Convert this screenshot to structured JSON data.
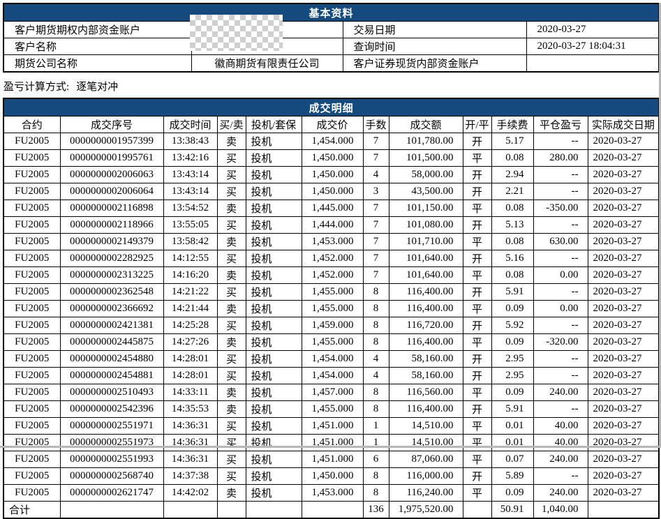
{
  "colors": {
    "title_bar_bg": "#154A7E",
    "title_bar_text": "#FFFFFF",
    "table_border": "#000000",
    "body_text": "#000000"
  },
  "basic_info": {
    "title": "基本资料",
    "rows": [
      {
        "label1": "客户期货期权内部资金账户",
        "value1": "",
        "value1_redacted": true,
        "label2": "交易日期",
        "value2": "2020-03-27"
      },
      {
        "label1": "客户名称",
        "value1": "",
        "value1_redacted": true,
        "label2": "查询时间",
        "value2": "2020-03-27 18:04:31"
      },
      {
        "label1": "期货公司名称",
        "value1": "徽商期货有限责任公司",
        "label2": "客户证券现货内部资金账户",
        "value2": ""
      }
    ]
  },
  "pnl_method": {
    "label": "盈亏计算方式:",
    "value": "逐笔对冲"
  },
  "trade_details": {
    "title": "成交明细",
    "columns": [
      "合约",
      "成交序号",
      "成交时间",
      "买/卖",
      "投机/套保",
      "成交价",
      "手数",
      "成交额",
      "开/平",
      "手续费",
      "平仓盈亏",
      "实际成交日期"
    ],
    "rows": [
      [
        "FU2005",
        "0000000001957399",
        "13:38:43",
        "卖",
        "投机",
        "1,454.000",
        "7",
        "101,780.00",
        "开",
        "5.17",
        "--",
        "2020-03-27"
      ],
      [
        "FU2005",
        "0000000001995761",
        "13:42:16",
        "买",
        "投机",
        "1,450.000",
        "7",
        "101,500.00",
        "平",
        "0.08",
        "280.00",
        "2020-03-27"
      ],
      [
        "FU2005",
        "0000000002006063",
        "13:43:14",
        "买",
        "投机",
        "1,450.000",
        "4",
        "58,000.00",
        "开",
        "2.94",
        "--",
        "2020-03-27"
      ],
      [
        "FU2005",
        "0000000002006064",
        "13:43:14",
        "买",
        "投机",
        "1,450.000",
        "3",
        "43,500.00",
        "开",
        "2.21",
        "--",
        "2020-03-27"
      ],
      [
        "FU2005",
        "0000000002116898",
        "13:54:52",
        "卖",
        "投机",
        "1,445.000",
        "7",
        "101,150.00",
        "平",
        "0.08",
        "-350.00",
        "2020-03-27"
      ],
      [
        "FU2005",
        "0000000002118966",
        "13:55:05",
        "买",
        "投机",
        "1,444.000",
        "7",
        "101,080.00",
        "开",
        "5.13",
        "--",
        "2020-03-27"
      ],
      [
        "FU2005",
        "0000000002149379",
        "13:58:42",
        "卖",
        "投机",
        "1,453.000",
        "7",
        "101,710.00",
        "平",
        "0.08",
        "630.00",
        "2020-03-27"
      ],
      [
        "FU2005",
        "0000000002282925",
        "14:12:55",
        "买",
        "投机",
        "1,452.000",
        "7",
        "101,640.00",
        "开",
        "5.16",
        "--",
        "2020-03-27"
      ],
      [
        "FU2005",
        "0000000002313225",
        "14:16:20",
        "卖",
        "投机",
        "1,452.000",
        "7",
        "101,640.00",
        "平",
        "0.08",
        "0.00",
        "2020-03-27"
      ],
      [
        "FU2005",
        "0000000002362548",
        "14:21:22",
        "买",
        "投机",
        "1,455.000",
        "8",
        "116,400.00",
        "开",
        "5.91",
        "--",
        "2020-03-27"
      ],
      [
        "FU2005",
        "0000000002366692",
        "14:21:44",
        "卖",
        "投机",
        "1,455.000",
        "8",
        "116,400.00",
        "平",
        "0.09",
        "0.00",
        "2020-03-27"
      ],
      [
        "FU2005",
        "0000000002421381",
        "14:25:28",
        "买",
        "投机",
        "1,459.000",
        "8",
        "116,720.00",
        "开",
        "5.92",
        "--",
        "2020-03-27"
      ],
      [
        "FU2005",
        "0000000002445875",
        "14:27:26",
        "卖",
        "投机",
        "1,455.000",
        "8",
        "116,400.00",
        "平",
        "0.09",
        "-320.00",
        "2020-03-27"
      ],
      [
        "FU2005",
        "0000000002454880",
        "14:28:01",
        "买",
        "投机",
        "1,454.000",
        "4",
        "58,160.00",
        "开",
        "2.95",
        "--",
        "2020-03-27"
      ],
      [
        "FU2005",
        "0000000002454881",
        "14:28:01",
        "买",
        "投机",
        "1,454.000",
        "4",
        "58,160.00",
        "开",
        "2.95",
        "--",
        "2020-03-27"
      ],
      [
        "FU2005",
        "0000000002510493",
        "14:33:11",
        "卖",
        "投机",
        "1,457.000",
        "8",
        "116,560.00",
        "平",
        "0.09",
        "240.00",
        "2020-03-27"
      ],
      [
        "FU2005",
        "0000000002542396",
        "14:35:53",
        "卖",
        "投机",
        "1,455.000",
        "8",
        "116,400.00",
        "开",
        "5.91",
        "--",
        "2020-03-27"
      ],
      [
        "FU2005",
        "0000000002551971",
        "14:36:31",
        "买",
        "投机",
        "1,451.000",
        "1",
        "14,510.00",
        "平",
        "0.01",
        "40.00",
        "2020-03-27"
      ],
      [
        "FU2005",
        "0000000002551973",
        "14:36:31",
        "买",
        "投机",
        "1,451.000",
        "1",
        "14,510.00",
        "平",
        "0.01",
        "40.00",
        "2020-03-27"
      ],
      [
        "FU2005",
        "0000000002551993",
        "14:36:31",
        "买",
        "投机",
        "1,451.000",
        "6",
        "87,060.00",
        "平",
        "0.07",
        "240.00",
        "2020-03-27"
      ],
      [
        "FU2005",
        "0000000002568740",
        "14:37:38",
        "买",
        "投机",
        "1,450.000",
        "8",
        "116,000.00",
        "开",
        "5.89",
        "--",
        "2020-03-27"
      ],
      [
        "FU2005",
        "0000000002621747",
        "14:42:02",
        "卖",
        "投机",
        "1,453.000",
        "8",
        "116,240.00",
        "平",
        "0.09",
        "240.00",
        "2020-03-27"
      ]
    ],
    "total_row": [
      "合计",
      "",
      "",
      "",
      "",
      "",
      "136",
      "1,975,520.00",
      "",
      "50.91",
      "1,040.00",
      ""
    ]
  }
}
